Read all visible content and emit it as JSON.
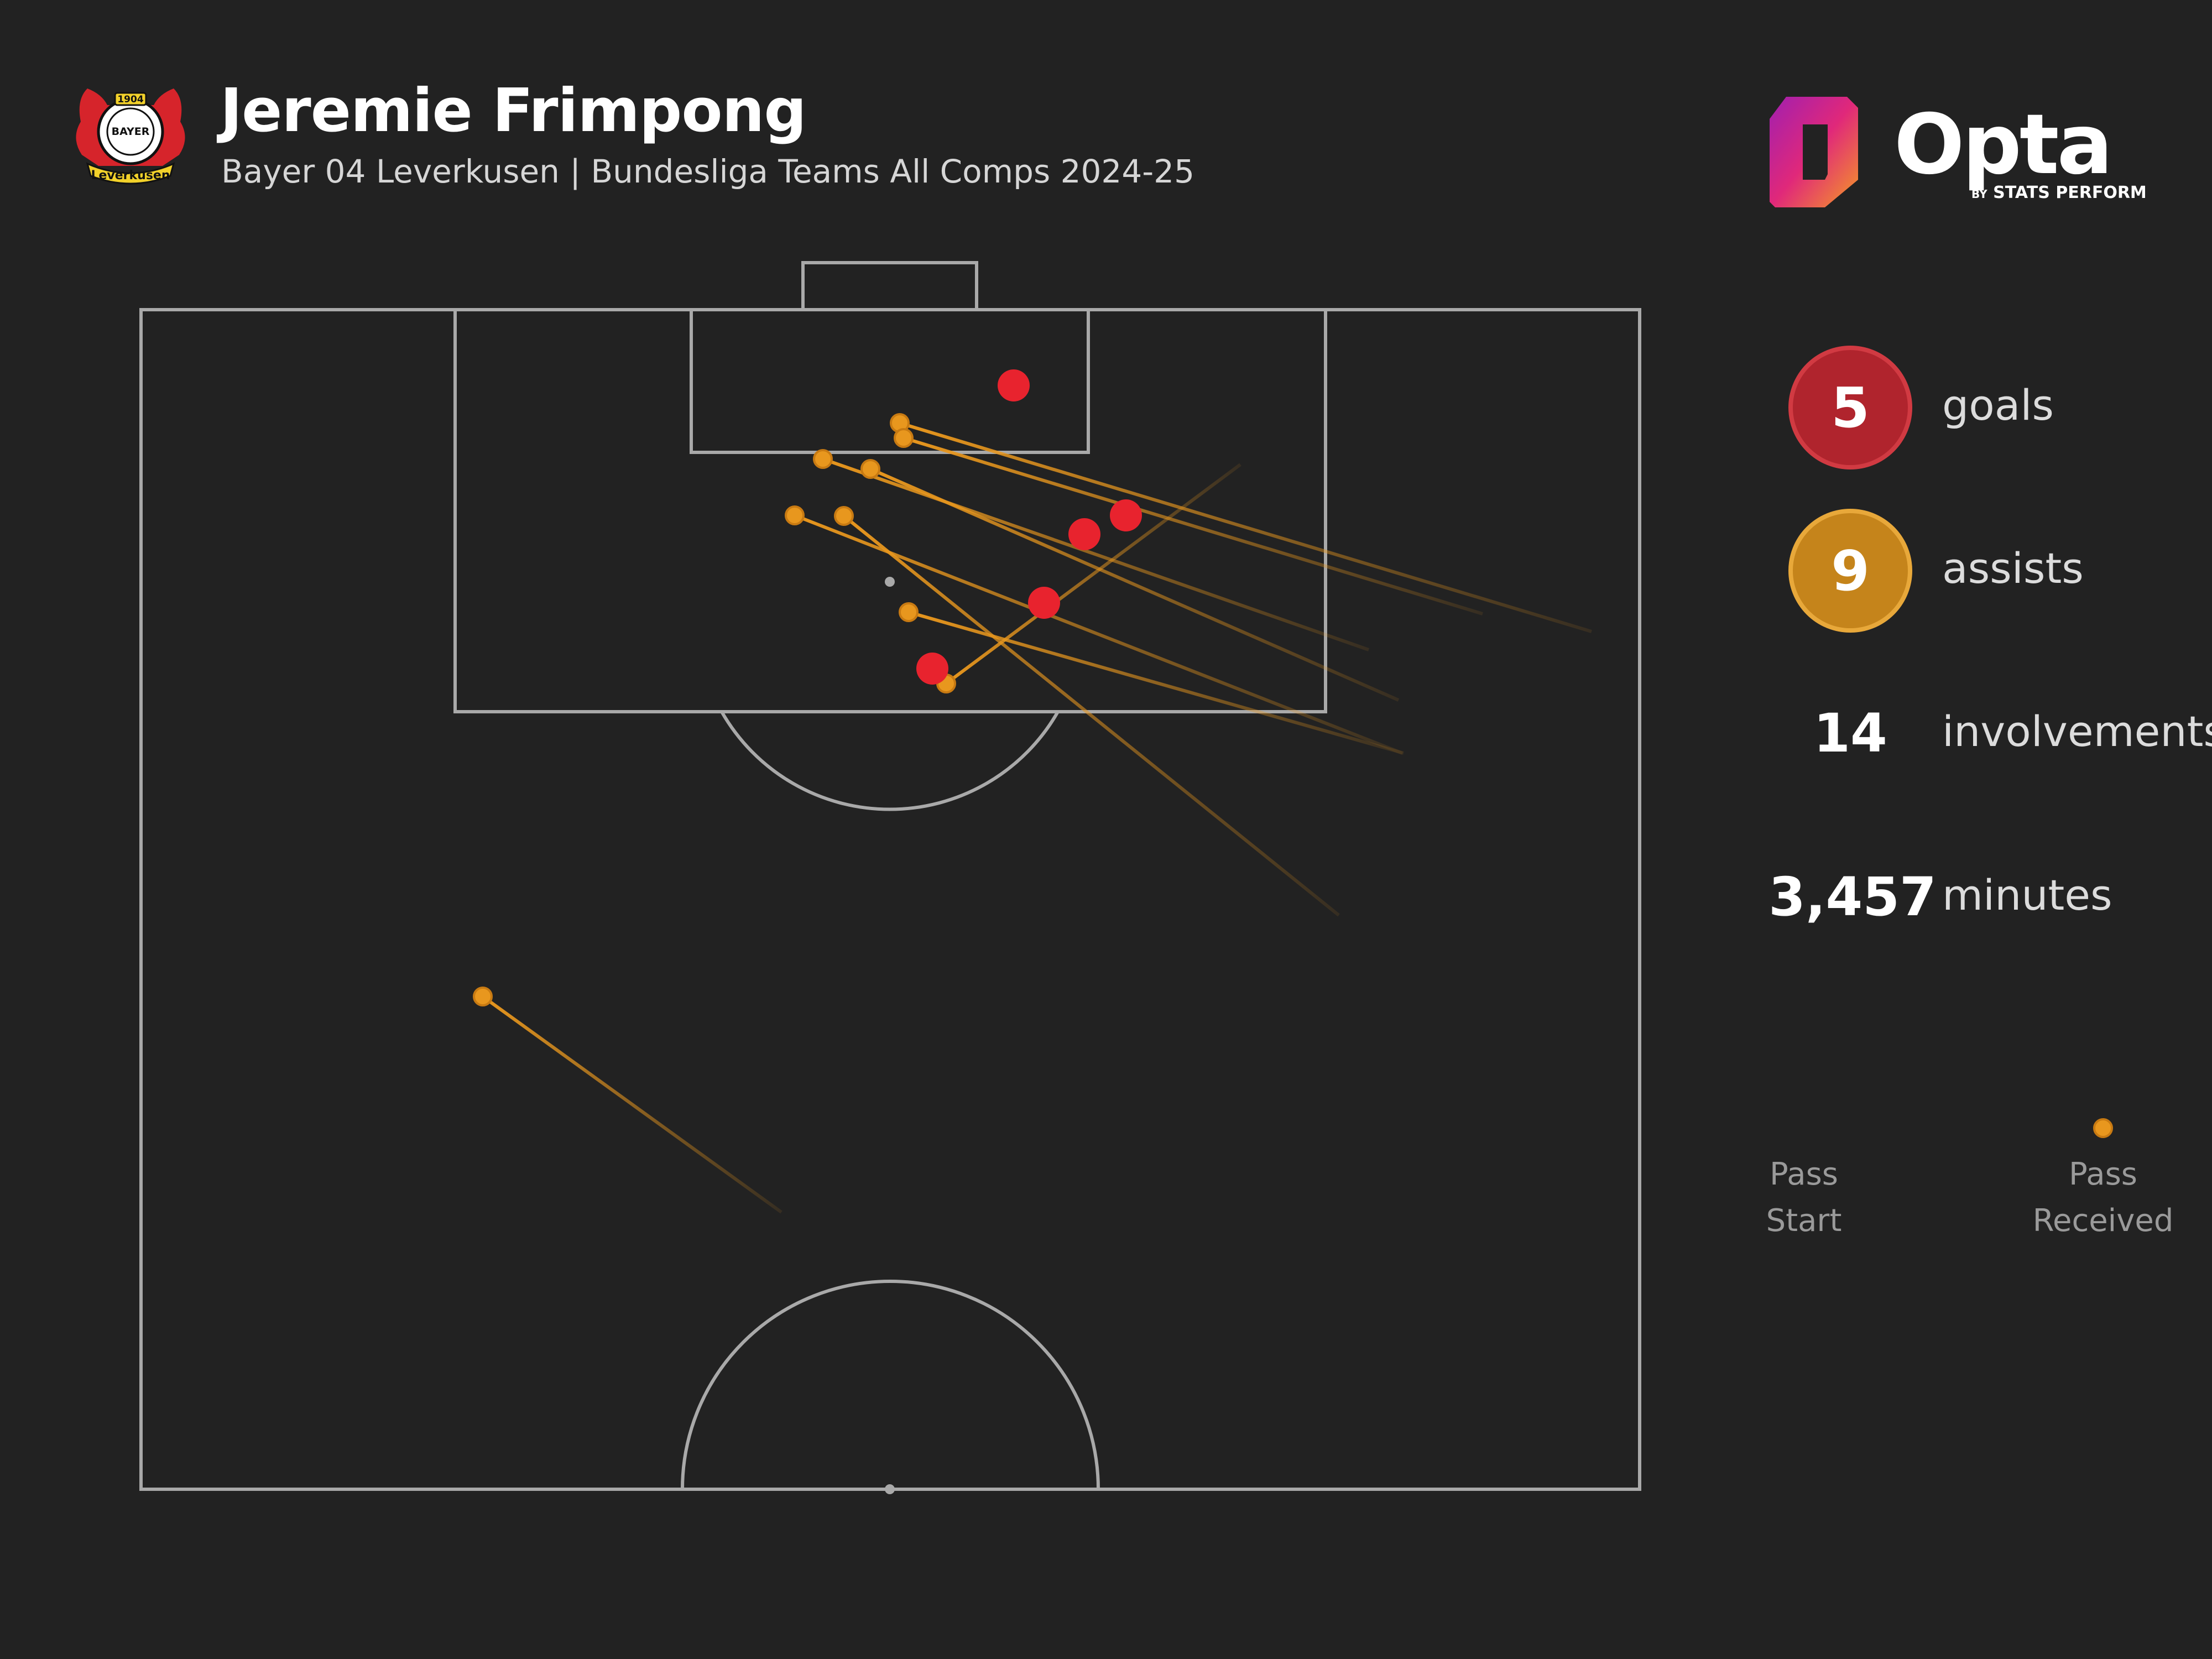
{
  "header": {
    "player_name": "Jeremie Frimpong",
    "subtitle": "Bayer 04 Leverkusen | Bundesliga Teams All Comps 2024-25",
    "crest_icon": "bayer-leverkusen-crest-icon",
    "crest_text": {
      "year": "1904",
      "bayer": "BAYER",
      "club": "Leverkusen"
    }
  },
  "brand": {
    "name": "Opta",
    "tagline_small": "BY",
    "tagline": "STATS PERFORM",
    "logo_icon": "opta-logo-icon"
  },
  "stats": [
    {
      "value": "5",
      "label": "goals",
      "color": "#b0242d",
      "border": "#d13a42"
    },
    {
      "value": "9",
      "label": "assists",
      "color": "#c5841b",
      "border": "#e8a83a"
    },
    {
      "value": "14",
      "label": "involvements"
    },
    {
      "value": "3,457",
      "label": "minutes"
    }
  ],
  "legend": {
    "start_label": [
      "Pass",
      "Start"
    ],
    "end_label": [
      "Pass",
      "Received"
    ]
  },
  "colors": {
    "background": "#222222",
    "pitch_line": "#a9a9a9",
    "goal": "#e8232e",
    "assist": "#e8971e"
  },
  "chart_data": {
    "type": "scatter",
    "goals": [
      [
        1833,
        697
      ],
      [
        2036,
        932
      ],
      [
        1961,
        966
      ],
      [
        1888,
        1090
      ],
      [
        1686,
        1209
      ]
    ],
    "assists": [
      {
        "received": [
          1627,
          765
        ],
        "start": [
          2878,
          1142
        ]
      },
      {
        "received": [
          1634,
          792
        ],
        "start": [
          2681,
          1110
        ]
      },
      {
        "received": [
          1488,
          830
        ],
        "start": [
          2475,
          1175
        ]
      },
      {
        "received": [
          1574,
          848
        ],
        "start": [
          2529,
          1266
        ]
      },
      {
        "received": [
          1437,
          932
        ],
        "start": [
          2536,
          1362
        ]
      },
      {
        "received": [
          1526,
          933
        ],
        "start": [
          2421,
          1655
        ]
      },
      {
        "received": [
          1643,
          1107
        ],
        "start": [
          2538,
          1362
        ]
      },
      {
        "received": [
          1711,
          1236
        ],
        "start": [
          2243,
          840
        ]
      },
      {
        "received": [
          873,
          1802
        ],
        "start": [
          1413,
          2192
        ]
      }
    ]
  }
}
